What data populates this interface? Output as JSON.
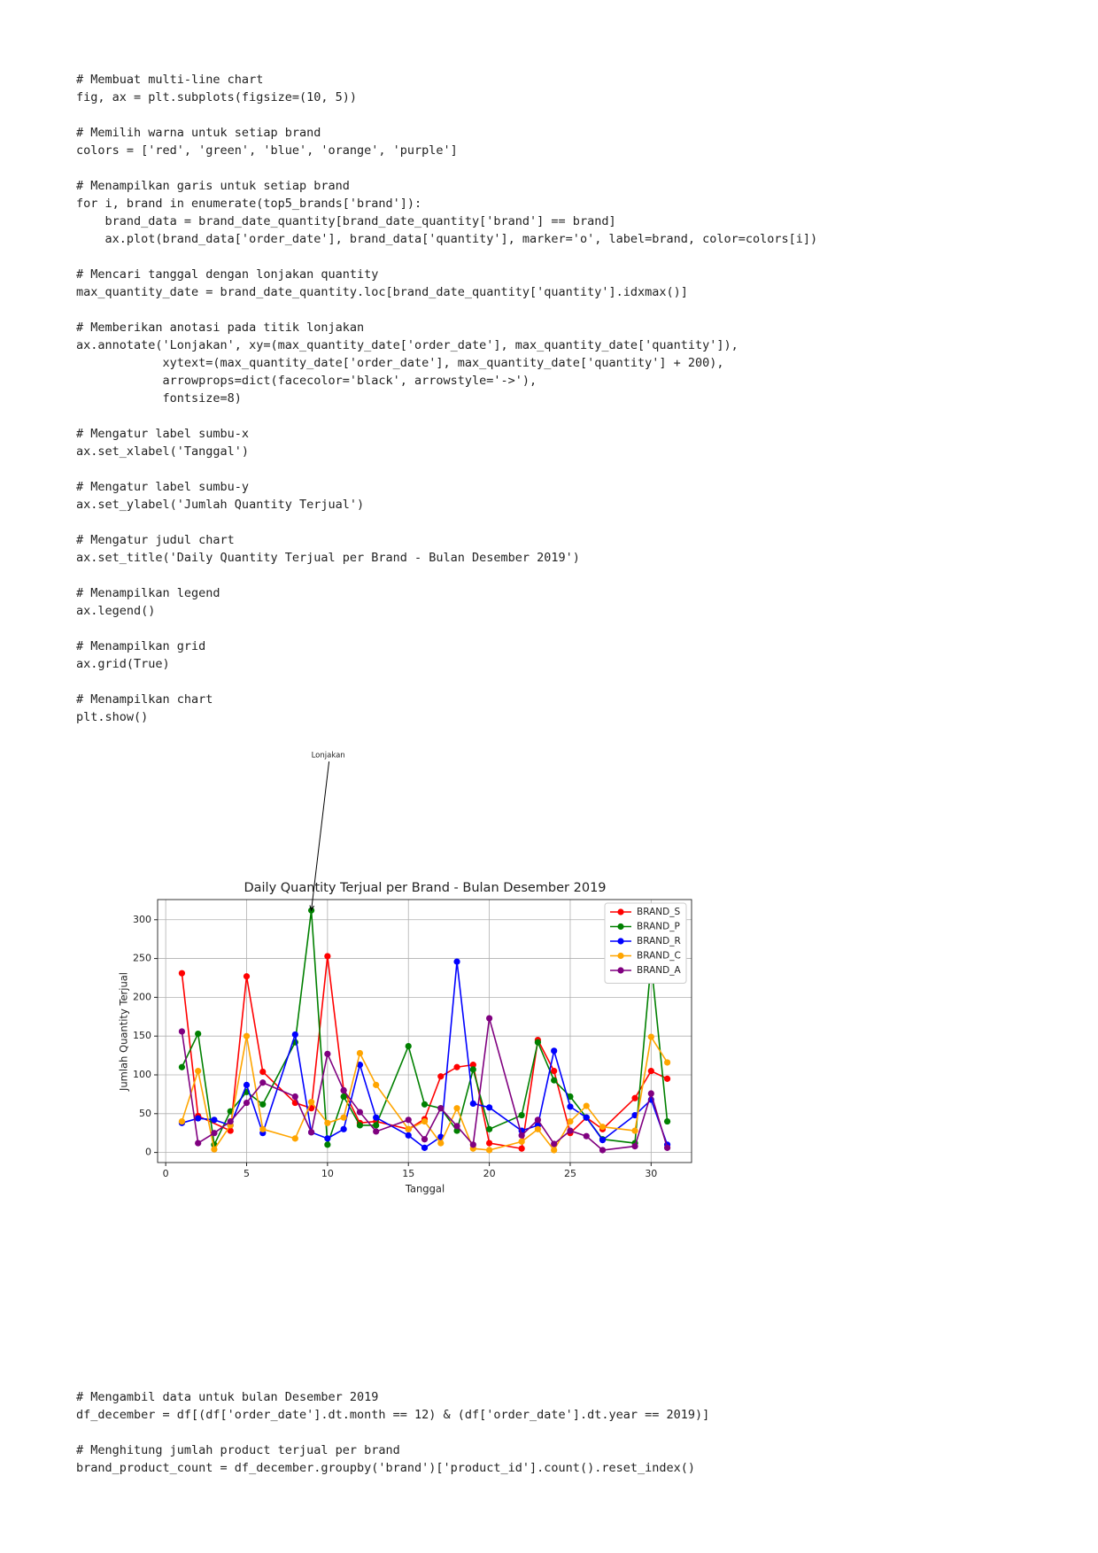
{
  "code_cells": [
    {
      "blocks": [
        [
          "# Membuat multi-line chart",
          "fig, ax = plt.subplots(figsize=(10, 5))"
        ],
        [
          "# Memilih warna untuk setiap brand",
          "colors = ['red', 'green', 'blue', 'orange', 'purple']"
        ],
        [
          "# Menampilkan garis untuk setiap brand",
          "for i, brand in enumerate(top5_brands['brand']):",
          "    brand_data = brand_date_quantity[brand_date_quantity['brand'] == brand]",
          "    ax.plot(brand_data['order_date'], brand_data['quantity'], marker='o', label=brand, color=colors[i])"
        ],
        [
          "# Mencari tanggal dengan lonjakan quantity",
          "max_quantity_date = brand_date_quantity.loc[brand_date_quantity['quantity'].idxmax()]"
        ],
        [
          "# Memberikan anotasi pada titik lonjakan",
          "ax.annotate('Lonjakan', xy=(max_quantity_date['order_date'], max_quantity_date['quantity']),",
          "            xytext=(max_quantity_date['order_date'], max_quantity_date['quantity'] + 200),",
          "            arrowprops=dict(facecolor='black', arrowstyle='->'),",
          "            fontsize=8)"
        ],
        [
          "# Mengatur label sumbu-x",
          "ax.set_xlabel('Tanggal')"
        ],
        [
          "# Mengatur label sumbu-y",
          "ax.set_ylabel('Jumlah Quantity Terjual')"
        ],
        [
          "# Mengatur judul chart",
          "ax.set_title('Daily Quantity Terjual per Brand - Bulan Desember 2019')"
        ],
        [
          "# Menampilkan legend",
          "ax.legend()"
        ],
        [
          "# Menampilkan grid",
          "ax.grid(True)"
        ],
        [
          "# Menampilkan chart",
          "plt.show()"
        ]
      ]
    },
    {
      "blocks": [
        [
          "# Mengambil data untuk bulan Desember 2019",
          "df_december = df[(df['order_date'].dt.month == 12) & (df['order_date'].dt.year == 2019)]"
        ],
        [
          "# Menghitung jumlah product terjual per brand",
          "brand_product_count = df_december.groupby('brand')['product_id'].count().reset_index()"
        ]
      ]
    }
  ],
  "chart_data": {
    "type": "line",
    "title": "Daily Quantity Terjual per Brand - Bulan Desember 2019",
    "x_label": "Tanggal",
    "y_label": "Jumlah Quantity Terjual",
    "xlim": [
      -0.5,
      32.5
    ],
    "xticks": [
      0,
      5,
      10,
      15,
      20,
      25,
      30
    ],
    "ylim": [
      -13,
      326
    ],
    "yticks": [
      0,
      50,
      100,
      150,
      200,
      250,
      300
    ],
    "grid": true,
    "legend": "upper right",
    "annotations": [
      {
        "text": "Lonjakan",
        "x": 9,
        "y": 312,
        "text_x": 9,
        "text_y": 512
      }
    ],
    "series": [
      {
        "name": "BRAND_S",
        "color": "red",
        "x": [
          1,
          2,
          4,
          5,
          6,
          8,
          9,
          10,
          11,
          12,
          13,
          15,
          16,
          17,
          18,
          19,
          20,
          22,
          23,
          24,
          25,
          26,
          27,
          29,
          30,
          31
        ],
        "values": [
          231,
          47,
          28,
          227,
          104,
          64,
          57,
          253,
          80,
          38,
          40,
          30,
          43,
          98,
          110,
          113,
          12,
          5,
          145,
          105,
          25,
          45,
          30,
          70,
          105,
          95
        ]
      },
      {
        "name": "BRAND_P",
        "color": "green",
        "x": [
          1,
          2,
          3,
          4,
          5,
          6,
          8,
          9,
          10,
          11,
          12,
          13,
          15,
          16,
          17,
          18,
          19,
          20,
          22,
          23,
          24,
          25,
          26,
          27,
          29,
          30,
          31
        ],
        "values": [
          110,
          153,
          10,
          53,
          78,
          62,
          142,
          312,
          10,
          72,
          35,
          35,
          137,
          62,
          57,
          28,
          107,
          30,
          48,
          142,
          93,
          72,
          45,
          17,
          12,
          245,
          40
        ]
      },
      {
        "name": "BRAND_R",
        "color": "blue",
        "x": [
          1,
          2,
          3,
          4,
          5,
          6,
          8,
          9,
          10,
          11,
          12,
          13,
          15,
          16,
          17,
          18,
          19,
          20,
          22,
          23,
          24,
          25,
          26,
          27,
          29,
          30,
          31
        ],
        "values": [
          38,
          44,
          42,
          35,
          87,
          25,
          152,
          26,
          18,
          30,
          113,
          45,
          22,
          6,
          20,
          246,
          63,
          58,
          28,
          35,
          131,
          59,
          45,
          16,
          48,
          68,
          10
        ]
      },
      {
        "name": "BRAND_C",
        "color": "orange",
        "x": [
          1,
          2,
          3,
          4,
          5,
          6,
          8,
          9,
          10,
          11,
          12,
          13,
          15,
          16,
          17,
          18,
          19,
          20,
          22,
          23,
          24,
          25,
          26,
          27,
          29,
          30,
          31
        ],
        "values": [
          40,
          105,
          4,
          35,
          150,
          30,
          18,
          65,
          38,
          45,
          128,
          87,
          30,
          40,
          12,
          57,
          5,
          3,
          14,
          30,
          3,
          40,
          60,
          33,
          28,
          149,
          116
        ]
      },
      {
        "name": "BRAND_A",
        "color": "purple",
        "x": [
          1,
          2,
          3,
          4,
          5,
          6,
          8,
          9,
          10,
          11,
          12,
          13,
          15,
          16,
          17,
          18,
          19,
          20,
          22,
          23,
          24,
          25,
          26,
          27,
          29,
          30,
          31
        ],
        "values": [
          156,
          12,
          25,
          40,
          64,
          90,
          72,
          26,
          127,
          80,
          52,
          27,
          42,
          17,
          57,
          34,
          10,
          173,
          22,
          42,
          11,
          28,
          21,
          3,
          8,
          76,
          6
        ]
      }
    ]
  }
}
